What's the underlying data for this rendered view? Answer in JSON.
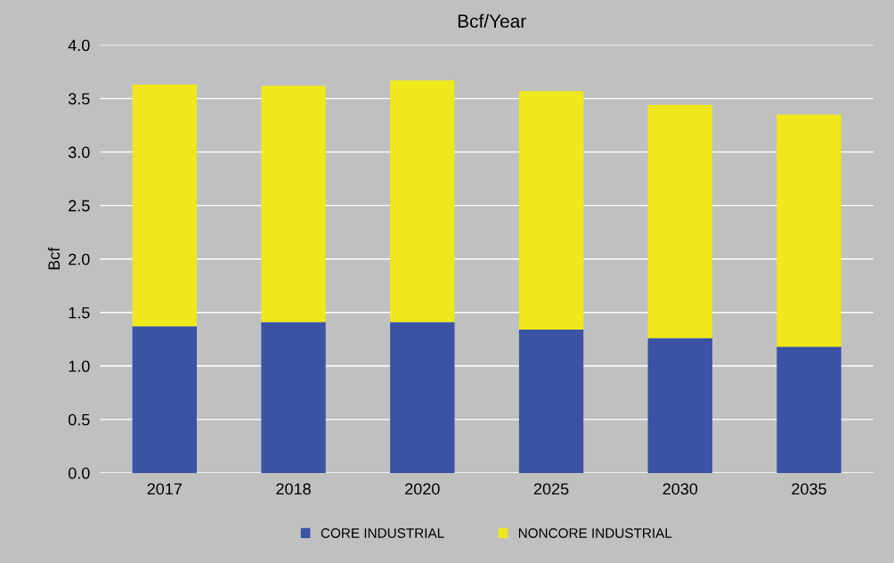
{
  "chart_data": {
    "type": "bar",
    "title": "Bcf/Year",
    "ylabel": "Bcf",
    "categories": [
      "2017",
      "2018",
      "2020",
      "2025",
      "2030",
      "2035"
    ],
    "stacked": true,
    "series": [
      {
        "name": "CORE INDUSTRIAL",
        "color": "#3a53a4",
        "values": [
          1.37,
          1.41,
          1.41,
          1.34,
          1.26,
          1.18
        ]
      },
      {
        "name": "NONCORE INDUSTRIAL",
        "color": "#f0e81a",
        "values": [
          2.26,
          2.21,
          2.26,
          2.23,
          2.18,
          2.17
        ]
      }
    ],
    "ylim": [
      0,
      4.0
    ],
    "yticks": [
      {
        "value": 0,
        "label": "0.0"
      },
      {
        "value": 0.5,
        "label": "0.5"
      },
      {
        "value": 1.0,
        "label": "1.0"
      },
      {
        "value": 1.5,
        "label": "1.5"
      },
      {
        "value": 2.0,
        "label": "2.0"
      },
      {
        "value": 2.5,
        "label": "2.5"
      },
      {
        "value": 3.0,
        "label": "3.0"
      },
      {
        "value": 3.5,
        "label": "3.5"
      },
      {
        "value": 4.0,
        "label": "4.0"
      }
    ],
    "grid": "y",
    "legend": "bottom"
  }
}
